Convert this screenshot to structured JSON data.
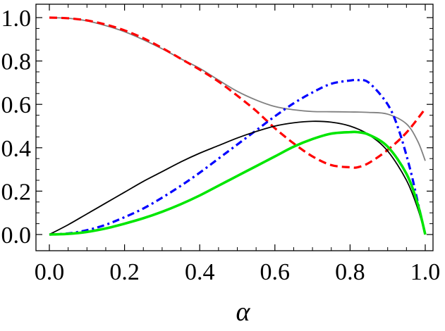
{
  "chart_data": {
    "type": "line",
    "xlabel": "α",
    "ylabel": "",
    "xlim": [
      0,
      1
    ],
    "ylim": [
      -0.03,
      1.05
    ],
    "x_ticks": [
      "0.0",
      "0.2",
      "0.4",
      "0.6",
      "0.8",
      "1.0"
    ],
    "y_ticks": [
      "0.0",
      "0.2",
      "0.4",
      "0.6",
      "0.8",
      "1.0"
    ],
    "grid": false,
    "legend": "none",
    "series": [
      {
        "color": "#808080",
        "style": "solid",
        "x": [
          0,
          0.05,
          0.1,
          0.15,
          0.2,
          0.25,
          0.3,
          0.35,
          0.4,
          0.45,
          0.5,
          0.55,
          0.6,
          0.65,
          0.7,
          0.75,
          0.8,
          0.85,
          0.9,
          0.95,
          0.98,
          1.0
        ],
        "y": [
          1.0,
          0.997,
          0.985,
          0.963,
          0.935,
          0.898,
          0.856,
          0.81,
          0.766,
          0.712,
          0.66,
          0.62,
          0.59,
          0.575,
          0.567,
          0.566,
          0.565,
          0.563,
          0.555,
          0.51,
          0.43,
          0.34
        ]
      },
      {
        "color": "#ff0000",
        "style": "dashed",
        "x": [
          0,
          0.05,
          0.1,
          0.15,
          0.2,
          0.25,
          0.3,
          0.35,
          0.4,
          0.45,
          0.5,
          0.55,
          0.6,
          0.65,
          0.7,
          0.75,
          0.8,
          0.82,
          0.85,
          0.9,
          0.95,
          1.0
        ],
        "y": [
          1.0,
          0.997,
          0.987,
          0.968,
          0.941,
          0.905,
          0.86,
          0.81,
          0.76,
          0.705,
          0.64,
          0.57,
          0.49,
          0.42,
          0.36,
          0.32,
          0.31,
          0.31,
          0.33,
          0.39,
          0.47,
          0.58
        ]
      },
      {
        "color": "#0000ff",
        "style": "dashdot",
        "x": [
          0,
          0.05,
          0.1,
          0.15,
          0.2,
          0.25,
          0.3,
          0.35,
          0.4,
          0.45,
          0.5,
          0.55,
          0.6,
          0.65,
          0.7,
          0.75,
          0.8,
          0.82,
          0.85,
          0.9,
          0.93,
          0.96,
          0.98,
          1.0
        ],
        "y": [
          0,
          0.005,
          0.02,
          0.045,
          0.08,
          0.12,
          0.17,
          0.225,
          0.285,
          0.35,
          0.415,
          0.48,
          0.545,
          0.605,
          0.655,
          0.695,
          0.71,
          0.712,
          0.7,
          0.6,
          0.48,
          0.3,
          0.15,
          0.0
        ]
      },
      {
        "color": "#000000",
        "style": "solid",
        "x": [
          0,
          0.05,
          0.1,
          0.15,
          0.2,
          0.25,
          0.3,
          0.35,
          0.4,
          0.45,
          0.5,
          0.55,
          0.6,
          0.65,
          0.7,
          0.75,
          0.8,
          0.85,
          0.9,
          0.95,
          0.98,
          1.0
        ],
        "y": [
          0,
          0.045,
          0.095,
          0.145,
          0.195,
          0.245,
          0.29,
          0.335,
          0.375,
          0.41,
          0.445,
          0.475,
          0.5,
          0.515,
          0.522,
          0.518,
          0.5,
          0.46,
          0.385,
          0.25,
          0.12,
          0.0
        ]
      },
      {
        "color": "#00e600",
        "style": "solid-thick",
        "x": [
          0,
          0.05,
          0.1,
          0.15,
          0.2,
          0.25,
          0.3,
          0.35,
          0.4,
          0.45,
          0.5,
          0.55,
          0.6,
          0.65,
          0.7,
          0.75,
          0.8,
          0.82,
          0.85,
          0.9,
          0.95,
          0.98,
          1.0
        ],
        "y": [
          0,
          0.003,
          0.012,
          0.028,
          0.05,
          0.075,
          0.105,
          0.14,
          0.18,
          0.225,
          0.27,
          0.315,
          0.36,
          0.405,
          0.44,
          0.465,
          0.472,
          0.472,
          0.46,
          0.405,
          0.28,
          0.14,
          0.0
        ]
      }
    ]
  }
}
